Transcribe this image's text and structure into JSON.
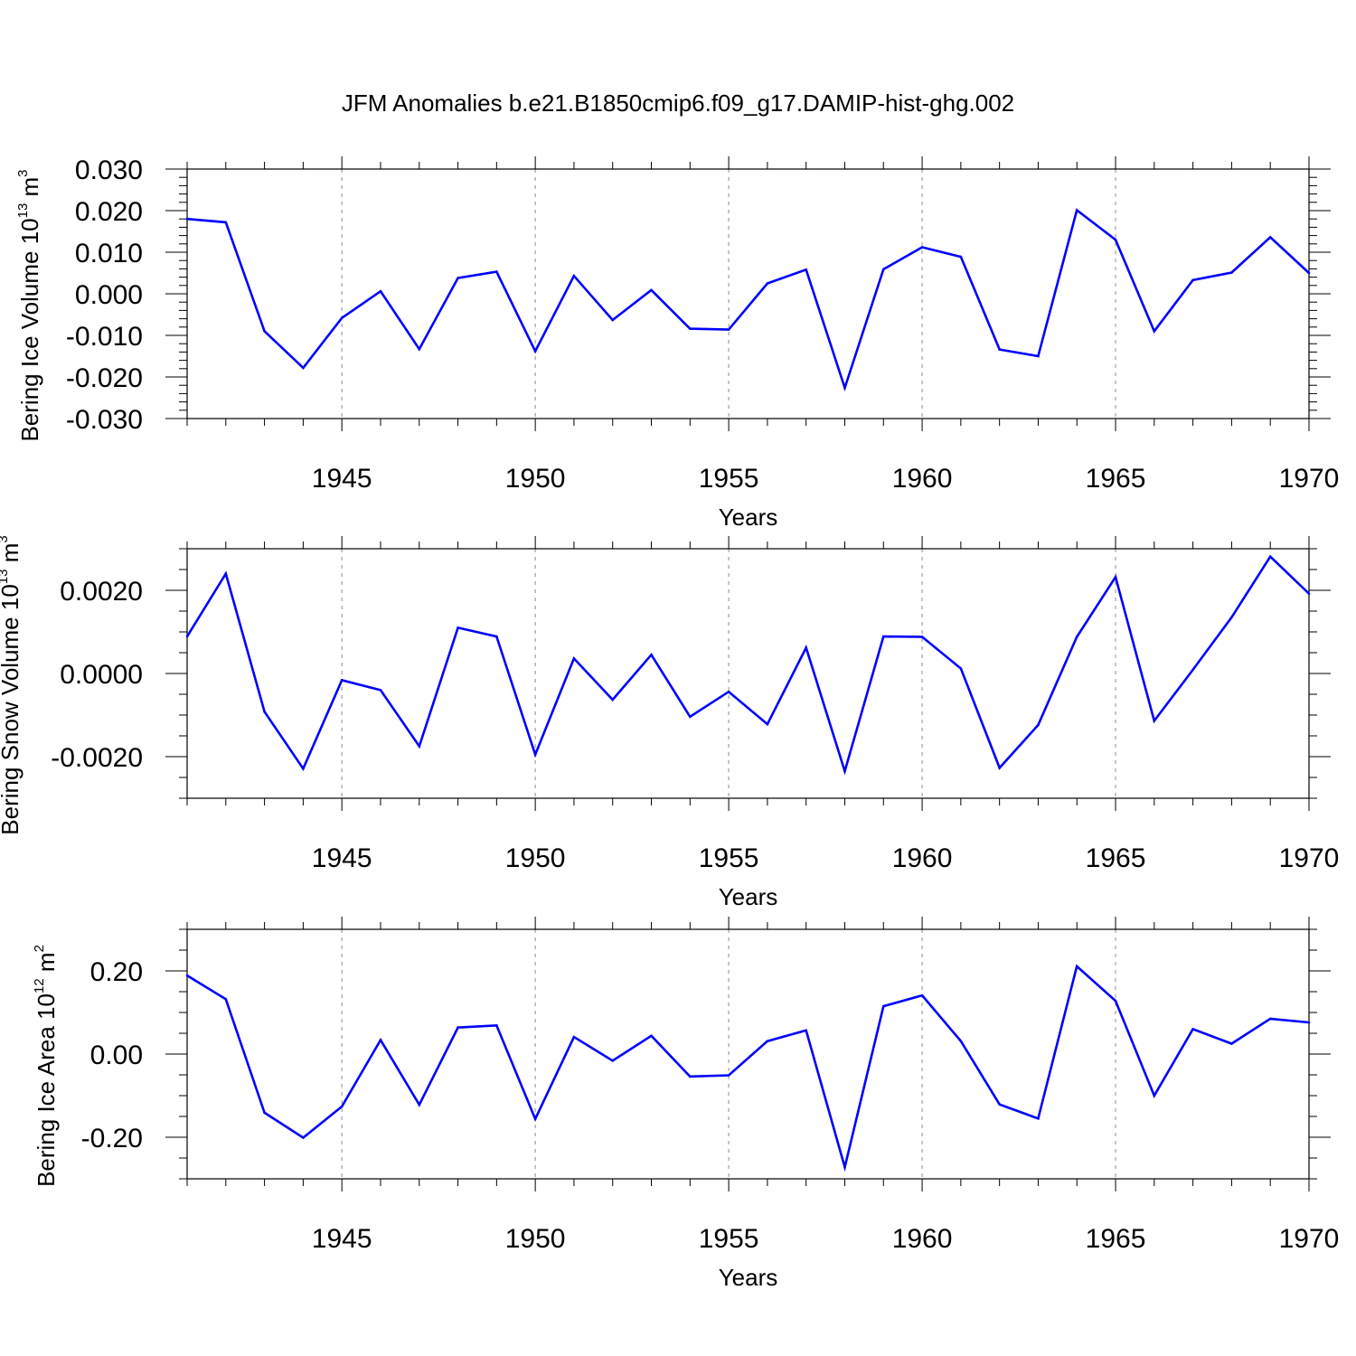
{
  "title": "JFM Anomalies b.e21.B1850cmip6.f09_g17.DAMIP-hist-ghg.002",
  "colors": {
    "line": "#0000ff",
    "frame": "#000000",
    "gridline": "#a0a0a0"
  },
  "chart_data": [
    {
      "type": "line",
      "ylabel_main": "Bering Ice Volume 10",
      "ylabel_exp": "13",
      "ylabel_unit": " m",
      "ylabel_unit_exp": "3",
      "xlabel": "Years",
      "xlim": [
        1941,
        1970
      ],
      "ylim": [
        -0.03,
        0.03
      ],
      "yticks": [
        -0.03,
        -0.02,
        -0.01,
        0.0,
        0.01,
        0.02,
        0.03
      ],
      "ytick_labels": [
        "-0.030",
        "-0.020",
        "-0.010",
        "0.000",
        "0.010",
        "0.020",
        "0.030"
      ],
      "yminor_step": 0.002,
      "xticks": [
        1945,
        1950,
        1955,
        1960,
        1965,
        1970
      ],
      "xtick_labels": [
        "1945",
        "1950",
        "1955",
        "1960",
        "1965",
        "1970"
      ],
      "grid": "vertical dashed at major x ticks",
      "series": [
        {
          "name": "Bering Ice Volume",
          "x": [
            1941,
            1942,
            1943,
            1944,
            1945,
            1946,
            1947,
            1948,
            1949,
            1950,
            1951,
            1952,
            1953,
            1954,
            1955,
            1956,
            1957,
            1958,
            1959,
            1960,
            1961,
            1962,
            1963,
            1964,
            1965,
            1966,
            1967,
            1968,
            1969,
            1970
          ],
          "values": [
            0.018,
            0.0172,
            -0.009,
            -0.0178,
            -0.0058,
            0.0006,
            -0.0133,
            0.0038,
            0.0053,
            -0.0138,
            0.0043,
            -0.0063,
            0.0009,
            -0.0084,
            -0.0086,
            0.0025,
            0.0058,
            -0.0226,
            0.0059,
            0.0112,
            0.0089,
            -0.0134,
            -0.015,
            0.0201,
            0.013,
            -0.009,
            0.0033,
            0.0051,
            0.0136,
            0.005
          ]
        }
      ]
    },
    {
      "type": "line",
      "ylabel_main": "Bering Snow Volume 10",
      "ylabel_exp": "13",
      "ylabel_unit": " m",
      "ylabel_unit_exp": "3",
      "xlabel": "Years",
      "xlim": [
        1941,
        1970
      ],
      "ylim": [
        -0.003,
        0.003
      ],
      "yticks": [
        -0.002,
        0.0,
        0.002
      ],
      "ytick_labels": [
        "-0.0020",
        "0.0000",
        "0.0020"
      ],
      "yminor_step": 0.0005,
      "xticks": [
        1945,
        1950,
        1955,
        1960,
        1965,
        1970
      ],
      "xtick_labels": [
        "1945",
        "1950",
        "1955",
        "1960",
        "1965",
        "1970"
      ],
      "grid": "vertical dashed at major x ticks",
      "series": [
        {
          "name": "Bering Snow Volume",
          "x": [
            1941,
            1942,
            1943,
            1944,
            1945,
            1946,
            1947,
            1948,
            1949,
            1950,
            1951,
            1952,
            1953,
            1954,
            1955,
            1956,
            1957,
            1958,
            1959,
            1960,
            1961,
            1962,
            1963,
            1964,
            1965,
            1966,
            1967,
            1968,
            1969,
            1970
          ],
          "values": [
            0.00089,
            0.0024,
            -0.00092,
            -0.00229,
            -0.00016,
            -0.0004,
            -0.00175,
            0.0011,
            0.00089,
            -0.00195,
            0.00036,
            -0.00063,
            0.00045,
            -0.00104,
            -0.00044,
            -0.00122,
            0.00062,
            -0.00235,
            0.00089,
            0.00088,
            0.00012,
            -0.00227,
            -0.00124,
            0.00088,
            0.00232,
            -0.00114,
            9e-05,
            0.00135,
            0.00281,
            0.00192
          ]
        }
      ]
    },
    {
      "type": "line",
      "ylabel_main": "Bering Ice Area 10",
      "ylabel_exp": "12",
      "ylabel_unit": " m",
      "ylabel_unit_exp": "2",
      "xlabel": "Years",
      "xlim": [
        1941,
        1970
      ],
      "ylim": [
        -0.3,
        0.3
      ],
      "yticks": [
        -0.2,
        0.0,
        0.2
      ],
      "ytick_labels": [
        "-0.20",
        "0.00",
        "0.20"
      ],
      "yminor_step": 0.05,
      "xticks": [
        1945,
        1950,
        1955,
        1960,
        1965,
        1970
      ],
      "xtick_labels": [
        "1945",
        "1950",
        "1955",
        "1960",
        "1965",
        "1970"
      ],
      "grid": "vertical dashed at major x ticks",
      "series": [
        {
          "name": "Bering Ice Area",
          "x": [
            1941,
            1942,
            1943,
            1944,
            1945,
            1946,
            1947,
            1948,
            1949,
            1950,
            1951,
            1952,
            1953,
            1954,
            1955,
            1956,
            1957,
            1958,
            1959,
            1960,
            1961,
            1962,
            1963,
            1964,
            1965,
            1966,
            1967,
            1968,
            1969,
            1970
          ],
          "values": [
            0.189,
            0.132,
            -0.141,
            -0.201,
            -0.126,
            0.034,
            -0.122,
            0.064,
            0.069,
            -0.156,
            0.041,
            -0.016,
            0.044,
            -0.054,
            -0.051,
            0.031,
            0.057,
            -0.272,
            0.115,
            0.141,
            0.031,
            -0.121,
            -0.155,
            0.211,
            0.128,
            -0.1,
            0.06,
            0.025,
            0.085,
            0.076
          ]
        }
      ]
    }
  ]
}
